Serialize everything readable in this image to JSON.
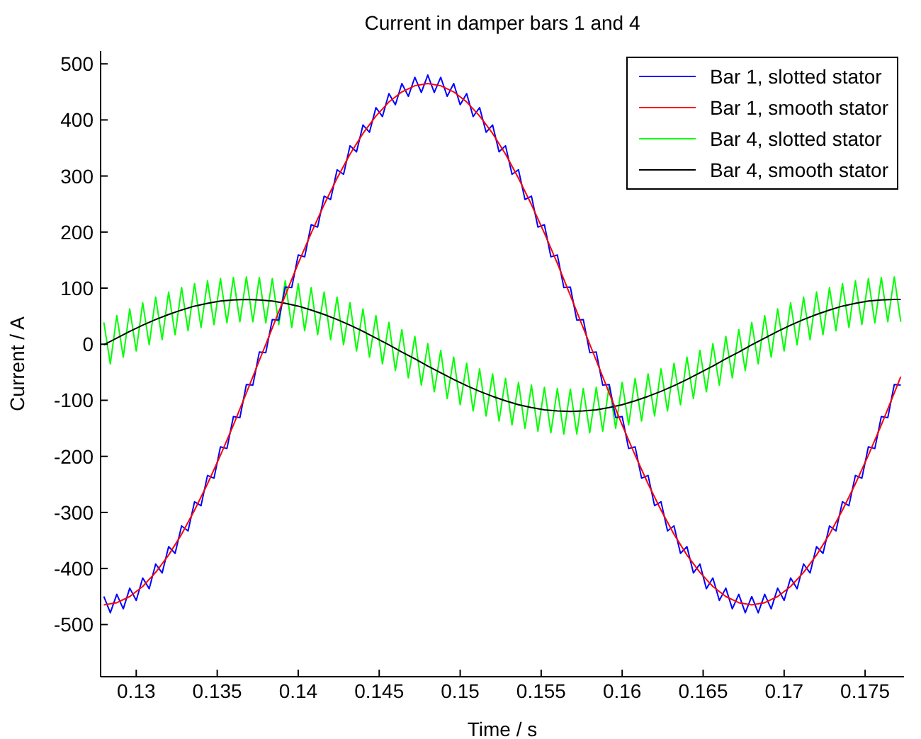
{
  "chart_data": {
    "type": "line",
    "title": "Current in damper bars 1 and 4",
    "xlabel": "Time / s",
    "ylabel": "Current / A",
    "x": [
      0.128,
      0.1284,
      0.1288,
      0.1292,
      0.1296,
      0.13,
      0.1304,
      0.1308,
      0.1312,
      0.1316,
      0.132,
      0.1324,
      0.1328,
      0.1332,
      0.1336,
      0.134,
      0.1344,
      0.1348,
      0.1352,
      0.1356,
      0.136,
      0.1364,
      0.1368,
      0.1372,
      0.1376,
      0.138,
      0.1384,
      0.1388,
      0.1392,
      0.1396,
      0.14,
      0.1404,
      0.1408,
      0.1412,
      0.1416,
      0.142,
      0.1424,
      0.1428,
      0.1432,
      0.1436,
      0.144,
      0.1444,
      0.1448,
      0.1452,
      0.1456,
      0.146,
      0.1464,
      0.1468,
      0.1472,
      0.1476,
      0.148,
      0.1484,
      0.1488,
      0.1492,
      0.1496,
      0.15,
      0.1504,
      0.1508,
      0.1512,
      0.1516,
      0.152,
      0.1524,
      0.1528,
      0.1532,
      0.1536,
      0.154,
      0.1544,
      0.1548,
      0.1552,
      0.1556,
      0.156,
      0.1564,
      0.1568,
      0.1572,
      0.1576,
      0.158,
      0.1584,
      0.1588,
      0.1592,
      0.1596,
      0.16,
      0.1604,
      0.1608,
      0.1612,
      0.1616,
      0.162,
      0.1624,
      0.1628,
      0.1632,
      0.1636,
      0.164,
      0.1644,
      0.1648,
      0.1652,
      0.1656,
      0.166,
      0.1664,
      0.1668,
      0.1672,
      0.1676,
      0.168,
      0.1684,
      0.1688,
      0.1692,
      0.1696,
      0.17,
      0.1704,
      0.1708,
      0.1712,
      0.1716,
      0.172,
      0.1724,
      0.1728,
      0.1732,
      0.1736,
      0.174,
      0.1744,
      0.1748,
      0.1752,
      0.1756,
      0.176,
      0.1764,
      0.1768,
      0.1772
    ],
    "series": [
      {
        "name": "Bar 1, slotted stator",
        "color": "#0000ff",
        "values": [
          -450,
          -479,
          -446,
          -472,
          -435,
          -457,
          -417,
          -436,
          -392,
          -408,
          -361,
          -373,
          -324,
          -333,
          -281,
          -288,
          -234,
          -239,
          -183,
          -186,
          -129,
          -131,
          -72,
          -73,
          -14,
          -15,
          44,
          43,
          102,
          101,
          159,
          156,
          213,
          209,
          264,
          258,
          311,
          303,
          354,
          343,
          391,
          378,
          422,
          406,
          447,
          427,
          465,
          442,
          476,
          449,
          480,
          449,
          476,
          442,
          465,
          427,
          447,
          406,
          422,
          378,
          391,
          343,
          354,
          303,
          311,
          258,
          264,
          209,
          213,
          156,
          159,
          101,
          102,
          43,
          44,
          -15,
          -14,
          -73,
          -72,
          -131,
          -129,
          -186,
          -183,
          -239,
          -234,
          -288,
          -281,
          -333,
          -324,
          -373,
          -361,
          -408,
          -392,
          -436,
          -417,
          -457,
          -435,
          -472,
          -446,
          -479,
          -450,
          -479,
          -446,
          -472,
          -435,
          -457,
          -417,
          -436,
          -392,
          -408,
          -361,
          -373,
          -324,
          -333,
          -281,
          -288,
          -234,
          -239,
          -183,
          -186,
          -129,
          -131,
          -72,
          -73
        ]
      },
      {
        "name": "Bar 1, smooth stator",
        "color": "#ff0000",
        "x": [
          0.128,
          0.1288,
          0.1296,
          0.1304,
          0.1312,
          0.132,
          0.1328,
          0.1336,
          0.1344,
          0.1352,
          0.136,
          0.1368,
          0.1376,
          0.1384,
          0.1392,
          0.14,
          0.1408,
          0.1416,
          0.1424,
          0.1432,
          0.144,
          0.1448,
          0.1456,
          0.1464,
          0.1472,
          0.148,
          0.1488,
          0.1496,
          0.1504,
          0.1512,
          0.152,
          0.1528,
          0.1536,
          0.1544,
          0.1552,
          0.156,
          0.1568,
          0.1576,
          0.1584,
          0.1592,
          0.16,
          0.1608,
          0.1616,
          0.1624,
          0.1632,
          0.164,
          0.1648,
          0.1656,
          0.1664,
          0.1672,
          0.168,
          0.1688,
          0.1696,
          0.1704,
          0.1712,
          0.172,
          0.1728,
          0.1736,
          0.1744,
          0.1752,
          0.176,
          0.1768,
          0.1772
        ],
        "values": [
          -465,
          -461,
          -450,
          -432,
          -407,
          -376,
          -339,
          -296,
          -249,
          -198,
          -144,
          -87,
          -29,
          29,
          87,
          144,
          198,
          249,
          296,
          339,
          376,
          407,
          432,
          450,
          461,
          465,
          461,
          450,
          432,
          407,
          376,
          339,
          296,
          249,
          198,
          144,
          87,
          29,
          -29,
          -87,
          -144,
          -198,
          -249,
          -296,
          -339,
          -376,
          -407,
          -432,
          -450,
          -461,
          -465,
          -461,
          -450,
          -432,
          -407,
          -376,
          -339,
          -296,
          -249,
          -198,
          -144,
          -87,
          -58
        ]
      },
      {
        "name": "Bar 4, slotted stator",
        "color": "#00ff00",
        "values": [
          39,
          -35,
          51,
          -23,
          63,
          -12,
          74,
          -1,
          84,
          8,
          93,
          17,
          101,
          24,
          108,
          30,
          113,
          35,
          117,
          38,
          119,
          40,
          120,
          40,
          119,
          38,
          117,
          35,
          113,
          30,
          108,
          24,
          101,
          17,
          93,
          8,
          84,
          -1,
          74,
          -12,
          63,
          -23,
          51,
          -35,
          39,
          -47,
          26,
          -60,
          14,
          -73,
          1,
          -85,
          -11,
          -97,
          -23,
          -108,
          -34,
          -119,
          -44,
          -128,
          -53,
          -137,
          -61,
          -144,
          -68,
          -150,
          -73,
          -155,
          -77,
          -158,
          -79,
          -160,
          -80,
          -160,
          -79,
          -158,
          -77,
          -155,
          -73,
          -150,
          -68,
          -144,
          -61,
          -137,
          -53,
          -128,
          -44,
          -119,
          -34,
          -108,
          -23,
          -97,
          -11,
          -85,
          1,
          -73,
          14,
          -60,
          26,
          -47,
          39,
          -35,
          51,
          -23,
          63,
          -12,
          74,
          -1,
          84,
          8,
          93,
          17,
          101,
          24,
          108,
          30,
          113,
          35,
          117,
          38,
          119,
          40,
          120,
          40
        ]
      },
      {
        "name": "Bar 4, smooth stator",
        "color": "#000000",
        "x": [
          0.128,
          0.1288,
          0.1296,
          0.1304,
          0.1312,
          0.132,
          0.1328,
          0.1336,
          0.1344,
          0.1352,
          0.136,
          0.1368,
          0.1376,
          0.1384,
          0.1392,
          0.14,
          0.1408,
          0.1416,
          0.1424,
          0.1432,
          0.144,
          0.1448,
          0.1456,
          0.1464,
          0.1472,
          0.148,
          0.1488,
          0.1496,
          0.1504,
          0.1512,
          0.152,
          0.1528,
          0.1536,
          0.1544,
          0.1552,
          0.156,
          0.1568,
          0.1576,
          0.1584,
          0.1592,
          0.16,
          0.1608,
          0.1616,
          0.1624,
          0.1632,
          0.164,
          0.1648,
          0.1656,
          0.1664,
          0.1672,
          0.168,
          0.1688,
          0.1696,
          0.1704,
          0.1712,
          0.172,
          0.1728,
          0.1736,
          0.1744,
          0.1752,
          0.176,
          0.1768,
          0.1772
        ],
        "values": [
          -1,
          11,
          23,
          34,
          44,
          53,
          61,
          68,
          73,
          77,
          79,
          80,
          79,
          77,
          73,
          68,
          61,
          53,
          44,
          34,
          23,
          11,
          -1,
          -14,
          -26,
          -39,
          -51,
          -63,
          -74,
          -84,
          -93,
          -101,
          -108,
          -113,
          -117,
          -119,
          -120,
          -119,
          -117,
          -113,
          -108,
          -101,
          -93,
          -84,
          -74,
          -63,
          -51,
          -39,
          -26,
          -14,
          -1,
          11,
          23,
          34,
          44,
          53,
          61,
          68,
          73,
          77,
          79,
          80,
          80
        ]
      }
    ],
    "xlim": [
      0.1278,
      0.1774
    ],
    "xticks": [
      0.13,
      0.135,
      0.14,
      0.145,
      0.15,
      0.155,
      0.16,
      0.165,
      0.17,
      0.175
    ],
    "ylim": [
      -593,
      523
    ],
    "yticks": [
      -500,
      -400,
      -300,
      -200,
      -100,
      0,
      100,
      200,
      300,
      400,
      500
    ],
    "grid": false,
    "legend": "top right",
    "marker": "none",
    "line_style": "solid"
  }
}
